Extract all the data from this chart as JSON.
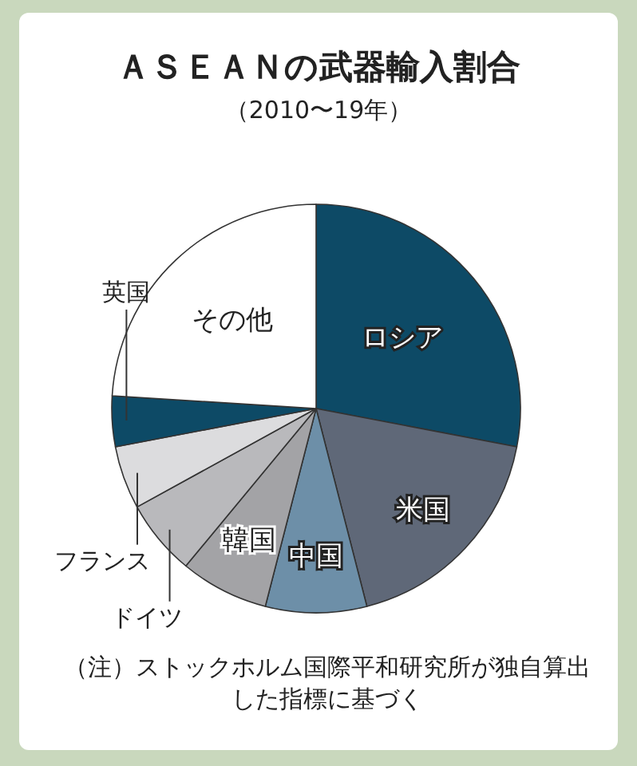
{
  "chart_data": {
    "type": "pie",
    "title": "ＡＳＥＡＮの武器輸入割合",
    "subtitle": "（2010〜19年）",
    "categories": [
      "ロシア",
      "米国",
      "中国",
      "韓国",
      "ドイツ",
      "フランス",
      "英国",
      "その他"
    ],
    "values": [
      28,
      18,
      8,
      7,
      6,
      5,
      4,
      24
    ],
    "colors": [
      "#0d4a66",
      "#5f6878",
      "#6d8fa8",
      "#a3a3a6",
      "#b9b9bc",
      "#dcdcde",
      "#0d4a66",
      "#ffffff"
    ],
    "annotations": [
      "（注）ストックホルム国際平和研究所が独自算出した指標に基づく"
    ]
  }
}
